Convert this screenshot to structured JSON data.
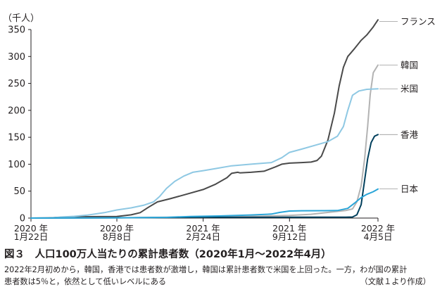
{
  "chart_data": {
    "type": "line",
    "ylabel": "（千人）",
    "ylim": [
      0,
      350
    ],
    "yticks": [
      0,
      50,
      100,
      150,
      200,
      250,
      300,
      350
    ],
    "xlim": [
      "2020-01-22",
      "2022-04-05"
    ],
    "xticks": [
      {
        "date": "2020-01-22",
        "line1": "2020 年",
        "line2": "1月22日"
      },
      {
        "date": "2020-08-08",
        "line1": "2020 年",
        "line2": "8月8日"
      },
      {
        "date": "2021-02-24",
        "line1": "2021 年",
        "line2": "2月24日"
      },
      {
        "date": "2021-09-12",
        "line1": "2021 年",
        "line2": "9月12日"
      },
      {
        "date": "2022-04-05",
        "line1": "2022 年",
        "line2": "4月5日"
      }
    ],
    "grid": false,
    "legend": "direct labels at right end of lines",
    "series": [
      {
        "name": "フランス",
        "color": "#4a4a4a",
        "label_y": 365,
        "points": [
          [
            "2020-01-22",
            0
          ],
          [
            "2020-03-01",
            0.1
          ],
          [
            "2020-04-01",
            1.5
          ],
          [
            "2020-05-01",
            2.3
          ],
          [
            "2020-07-01",
            2.7
          ],
          [
            "2020-08-08",
            3
          ],
          [
            "2020-09-10",
            6
          ],
          [
            "2020-10-01",
            10
          ],
          [
            "2020-10-20",
            20
          ],
          [
            "2020-11-10",
            30
          ],
          [
            "2020-12-10",
            36
          ],
          [
            "2021-01-15",
            44
          ],
          [
            "2021-02-24",
            53
          ],
          [
            "2021-03-25",
            63
          ],
          [
            "2021-04-20",
            75
          ],
          [
            "2021-05-01",
            83
          ],
          [
            "2021-05-15",
            85
          ],
          [
            "2021-05-20",
            84
          ],
          [
            "2021-06-15",
            85
          ],
          [
            "2021-07-15",
            87
          ],
          [
            "2021-08-10",
            95
          ],
          [
            "2021-08-25",
            100
          ],
          [
            "2021-09-12",
            102
          ],
          [
            "2021-10-10",
            103
          ],
          [
            "2021-11-01",
            104
          ],
          [
            "2021-11-15",
            107
          ],
          [
            "2021-11-25",
            115
          ],
          [
            "2021-12-10",
            145
          ],
          [
            "2021-12-25",
            195
          ],
          [
            "2022-01-05",
            245
          ],
          [
            "2022-01-15",
            280
          ],
          [
            "2022-01-25",
            300
          ],
          [
            "2022-02-10",
            315
          ],
          [
            "2022-02-25",
            330
          ],
          [
            "2022-03-10",
            340
          ],
          [
            "2022-03-25",
            355
          ],
          [
            "2022-04-05",
            368
          ]
        ]
      },
      {
        "name": "韓国",
        "color": "#b3b3b3",
        "label_y": 284,
        "points": [
          [
            "2020-01-22",
            0
          ],
          [
            "2020-03-01",
            0.5
          ],
          [
            "2020-05-01",
            0.5
          ],
          [
            "2020-09-01",
            0.7
          ],
          [
            "2020-12-01",
            1.4
          ],
          [
            "2021-02-24",
            1.7
          ],
          [
            "2021-06-01",
            2.8
          ],
          [
            "2021-09-12",
            5
          ],
          [
            "2021-11-01",
            7
          ],
          [
            "2021-12-15",
            11
          ],
          [
            "2022-01-20",
            14
          ],
          [
            "2022-02-05",
            17
          ],
          [
            "2022-02-15",
            30
          ],
          [
            "2022-02-25",
            60
          ],
          [
            "2022-03-05",
            110
          ],
          [
            "2022-03-12",
            170
          ],
          [
            "2022-03-18",
            230
          ],
          [
            "2022-03-25",
            270
          ],
          [
            "2022-04-05",
            284
          ]
        ]
      },
      {
        "name": "米国",
        "color": "#8ec8e3",
        "label_y": 240,
        "points": [
          [
            "2020-01-22",
            0
          ],
          [
            "2020-03-10",
            0.3
          ],
          [
            "2020-04-01",
            2
          ],
          [
            "2020-05-01",
            3.2
          ],
          [
            "2020-06-01",
            5.5
          ],
          [
            "2020-07-10",
            10
          ],
          [
            "2020-08-08",
            15
          ],
          [
            "2020-09-10",
            19
          ],
          [
            "2020-10-10",
            24
          ],
          [
            "2020-11-01",
            30
          ],
          [
            "2020-11-15",
            40
          ],
          [
            "2020-12-01",
            55
          ],
          [
            "2020-12-20",
            68
          ],
          [
            "2021-01-10",
            78
          ],
          [
            "2021-01-31",
            85
          ],
          [
            "2021-02-24",
            88
          ],
          [
            "2021-03-25",
            92
          ],
          [
            "2021-05-01",
            97
          ],
          [
            "2021-06-15",
            100
          ],
          [
            "2021-08-01",
            103
          ],
          [
            "2021-08-25",
            112
          ],
          [
            "2021-09-12",
            122
          ],
          [
            "2021-10-10",
            128
          ],
          [
            "2021-11-10",
            135
          ],
          [
            "2021-12-10",
            142
          ],
          [
            "2022-01-01",
            152
          ],
          [
            "2022-01-15",
            170
          ],
          [
            "2022-01-25",
            200
          ],
          [
            "2022-02-05",
            228
          ],
          [
            "2022-02-20",
            236
          ],
          [
            "2022-03-10",
            239
          ],
          [
            "2022-04-05",
            240
          ]
        ]
      },
      {
        "name": "香港",
        "color": "#003f5c",
        "label_y": 155,
        "points": [
          [
            "2020-01-22",
            0
          ],
          [
            "2020-08-08",
            0.5
          ],
          [
            "2021-02-24",
            1.4
          ],
          [
            "2021-09-12",
            1.6
          ],
          [
            "2022-01-20",
            1.7
          ],
          [
            "2022-02-05",
            2
          ],
          [
            "2022-02-15",
            6
          ],
          [
            "2022-02-25",
            25
          ],
          [
            "2022-03-05",
            70
          ],
          [
            "2022-03-12",
            110
          ],
          [
            "2022-03-20",
            140
          ],
          [
            "2022-03-28",
            152
          ],
          [
            "2022-04-05",
            155
          ]
        ]
      },
      {
        "name": "日本",
        "color": "#2aa5d8",
        "label_y": 54,
        "points": [
          [
            "2020-01-22",
            0
          ],
          [
            "2020-08-08",
            0.5
          ],
          [
            "2020-12-01",
            1.3
          ],
          [
            "2021-01-25",
            3
          ],
          [
            "2021-04-01",
            3.9
          ],
          [
            "2021-06-15",
            5.7
          ],
          [
            "2021-08-01",
            7.5
          ],
          [
            "2021-08-20",
            10.5
          ],
          [
            "2021-09-12",
            13
          ],
          [
            "2021-10-10",
            13.6
          ],
          [
            "2021-12-01",
            13.7
          ],
          [
            "2022-01-01",
            14
          ],
          [
            "2022-01-25",
            18
          ],
          [
            "2022-02-10",
            28
          ],
          [
            "2022-02-25",
            38
          ],
          [
            "2022-03-10",
            44
          ],
          [
            "2022-03-25",
            49
          ],
          [
            "2022-04-05",
            54
          ]
        ]
      }
    ]
  },
  "caption": {
    "title": "図３　人口100万人当たりの累計患者数（2020年1月〜2022年4月）",
    "body_line1": "2022年2月初めから，韓国，香港では患者数が激増し，韓国は累計患者数で米国を上回った。一方，わが国の累計",
    "body_line2": "患者数は5％と，依然として低いレベルにある",
    "source": "（文献１より作成）"
  }
}
